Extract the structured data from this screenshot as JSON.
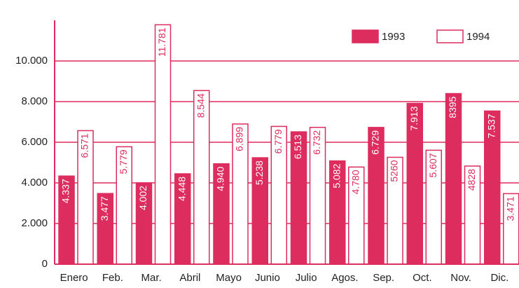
{
  "chart_data": {
    "type": "bar",
    "categories": [
      "Enero",
      "Feb.",
      "Mar.",
      "Abril",
      "Mayo",
      "Junio",
      "Julio",
      "Agos.",
      "Sep.",
      "Oct.",
      "Nov.",
      "Dic."
    ],
    "series": [
      {
        "name": "1993",
        "color": "#dd2c5e",
        "values": [
          4337,
          3477,
          4002,
          4448,
          4940,
          5238,
          6513,
          5082,
          6729,
          7913,
          8395,
          7537
        ],
        "value_labels": [
          "4.337",
          "3.477",
          "4.002",
          "4.448",
          "4.940",
          "5.238",
          "6.513",
          "5.082",
          "6.729",
          "7.913",
          "8395",
          "7.537"
        ]
      },
      {
        "name": "1994",
        "color": "#ffffff",
        "values": [
          6571,
          5779,
          11781,
          8544,
          6899,
          6779,
          6732,
          4780,
          5260,
          5607,
          4828,
          3471
        ],
        "value_labels": [
          "6.571",
          "5.779",
          "11.781",
          "8.544",
          "6.899",
          "6.779",
          "6.732",
          "4.780",
          "5260",
          "5.607",
          "4828",
          "3.471"
        ]
      }
    ],
    "ylim": [
      0,
      12000
    ],
    "yticks": [
      0,
      {
        "value": 2000,
        "label": "2.000"
      },
      {
        "value": 4000,
        "label": "4.000"
      },
      {
        "value": 6000,
        "label": "6.000"
      },
      {
        "value": 8000,
        "label": "8.000"
      },
      {
        "value": 10000,
        "label": "10.000"
      }
    ],
    "grid": true,
    "legend": "upper right",
    "edge_color": "#dd2c5e"
  }
}
